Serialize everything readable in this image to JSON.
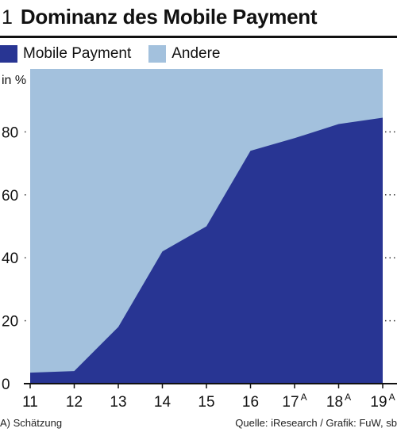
{
  "figure_number": "1",
  "title": "Dominanz des Mobile Payment",
  "footnote": "A) Schätzung",
  "source": "Quelle: iResearch / Grafik: FuW, sb",
  "colors": {
    "mobile": "#283593",
    "other": "#a3c1dd"
  },
  "chart_data": {
    "type": "area",
    "stacked": true,
    "x": [
      "11",
      "12",
      "13",
      "14",
      "15",
      "16",
      "17",
      "18",
      "19"
    ],
    "x_superscripts": [
      "",
      "",
      "",
      "",
      "",
      "",
      "A",
      "A",
      "A"
    ],
    "series": [
      {
        "name": "Mobile Payment",
        "values": [
          3.5,
          4,
          18,
          42,
          50,
          74,
          78,
          82.5,
          84.5
        ]
      },
      {
        "name": "Andere",
        "values": [
          96.5,
          96,
          82,
          58,
          50,
          26,
          22,
          17.5,
          15.5
        ]
      }
    ],
    "ylabel": "in %",
    "ylim": [
      0,
      100
    ],
    "yticks": [
      0,
      20,
      40,
      60,
      80
    ],
    "legend_position": "top-left"
  }
}
